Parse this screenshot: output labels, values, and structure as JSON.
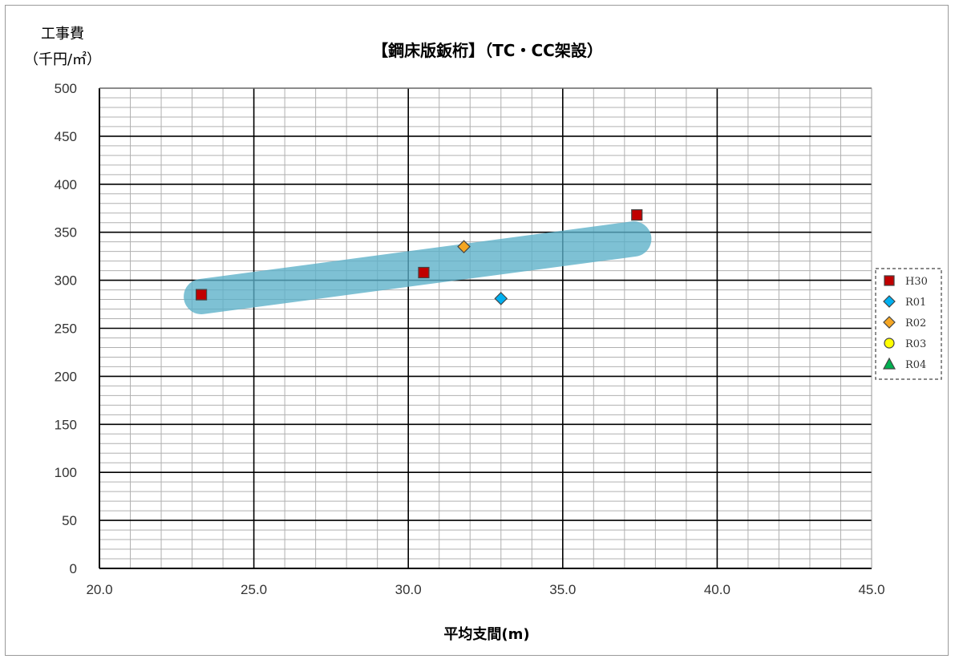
{
  "chart_data": {
    "type": "scatter",
    "title": "【鋼床版鈑桁】（TC・CC架設）",
    "ylabel_line1": "工事費",
    "ylabel_line2": "（千円/㎡）",
    "xlabel": "平均支間(m)",
    "xlim": [
      20.0,
      45.0
    ],
    "ylim": [
      0,
      500
    ],
    "x_ticks": [
      "20.0",
      "25.0",
      "30.0",
      "35.0",
      "40.0",
      "45.0"
    ],
    "y_ticks": [
      "0",
      "50",
      "100",
      "150",
      "200",
      "250",
      "300",
      "350",
      "400",
      "450",
      "500"
    ],
    "grid": true,
    "legend_position": "right",
    "series": [
      {
        "name": "H30",
        "marker": "square",
        "color": "#c00000",
        "points": [
          {
            "x": 23.3,
            "y": 285
          },
          {
            "x": 30.5,
            "y": 308
          },
          {
            "x": 37.4,
            "y": 368
          }
        ]
      },
      {
        "name": "R01",
        "marker": "diamond",
        "color": "#00b0f0",
        "points": [
          {
            "x": 33.0,
            "y": 281
          }
        ]
      },
      {
        "name": "R02",
        "marker": "diamond",
        "color": "#f5a623",
        "points": [
          {
            "x": 31.8,
            "y": 335
          }
        ]
      },
      {
        "name": "R03",
        "marker": "circle",
        "color": "#ffff00",
        "points": []
      },
      {
        "name": "R04",
        "marker": "triangle",
        "color": "#00b050",
        "points": []
      }
    ],
    "trend_band": {
      "color": "#5bb0c9",
      "from": {
        "x": 23.3,
        "y": 283
      },
      "to": {
        "x": 37.3,
        "y": 343
      }
    }
  }
}
